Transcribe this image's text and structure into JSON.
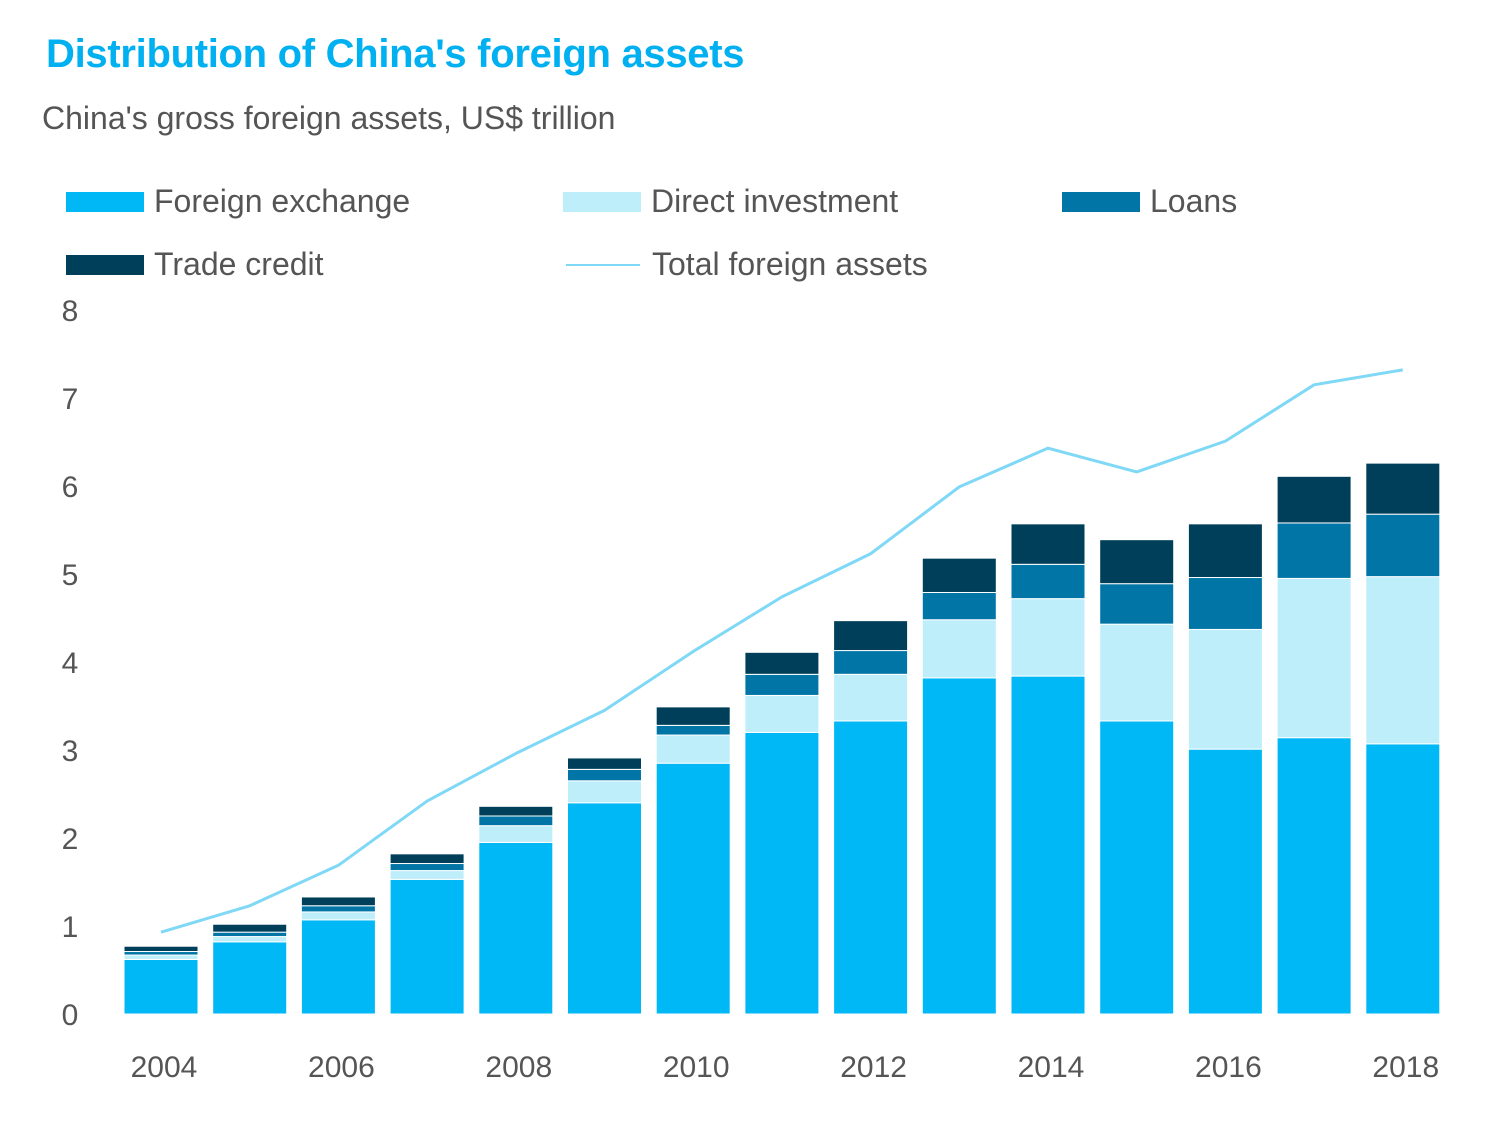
{
  "title": "Distribution of China's foreign assets",
  "subtitle": "China's gross foreign assets, US$ trillion",
  "legend": [
    {
      "label": "Foreign exchange",
      "color": "#00b8f5",
      "kind": "bar"
    },
    {
      "label": "Direct investment",
      "color": "#bfeefb",
      "kind": "bar"
    },
    {
      "label": "Loans",
      "color": "#0075a6",
      "kind": "bar"
    },
    {
      "label": "Trade credit",
      "color": "#003f59",
      "kind": "bar"
    },
    {
      "label": "Total foreign assets",
      "color": "#7fd8f5",
      "kind": "line"
    }
  ],
  "chart_data": {
    "type": "bar",
    "stacked": true,
    "title": "Distribution of China's foreign assets",
    "subtitle": "China's gross foreign assets, US$ trillion",
    "ylim": [
      0,
      8
    ],
    "yticks": [
      "0",
      "1",
      "2",
      "3",
      "4",
      "5",
      "6",
      "7",
      "8"
    ],
    "categories": [
      "2004",
      "2005",
      "2006",
      "2007",
      "2008",
      "2009",
      "2010",
      "2011",
      "2012",
      "2013",
      "2014",
      "2015",
      "2016",
      "2017",
      "2018"
    ],
    "xtick_labels": [
      "2004",
      "",
      "2006",
      "",
      "2008",
      "",
      "2010",
      "",
      "2012",
      "",
      "2014",
      "",
      "2016",
      "",
      "2018"
    ],
    "series": [
      {
        "name": "Foreign exchange",
        "color": "#00b8f5",
        "values": [
          0.62,
          0.82,
          1.07,
          1.53,
          1.95,
          2.4,
          2.85,
          3.2,
          3.33,
          3.82,
          3.84,
          3.33,
          3.01,
          3.14,
          3.07
        ]
      },
      {
        "name": "Direct investment",
        "color": "#bfeefb",
        "values": [
          0.05,
          0.06,
          0.09,
          0.1,
          0.19,
          0.25,
          0.32,
          0.42,
          0.53,
          0.66,
          0.88,
          1.1,
          1.36,
          1.81,
          1.9
        ]
      },
      {
        "name": "Loans",
        "color": "#0075a6",
        "values": [
          0.04,
          0.05,
          0.07,
          0.08,
          0.11,
          0.13,
          0.11,
          0.24,
          0.27,
          0.31,
          0.39,
          0.46,
          0.59,
          0.63,
          0.71
        ]
      },
      {
        "name": "Trade credit",
        "color": "#003f59",
        "values": [
          0.06,
          0.09,
          0.1,
          0.11,
          0.11,
          0.13,
          0.21,
          0.25,
          0.34,
          0.39,
          0.46,
          0.5,
          0.61,
          0.53,
          0.58
        ]
      }
    ],
    "line": {
      "name": "Total foreign assets",
      "color": "#7fd8f5",
      "values": [
        0.93,
        1.23,
        1.69,
        2.42,
        2.96,
        3.45,
        4.12,
        4.74,
        5.23,
        5.99,
        6.43,
        6.16,
        6.51,
        7.15,
        7.32
      ]
    },
    "grid": false,
    "legend_position": "top"
  }
}
